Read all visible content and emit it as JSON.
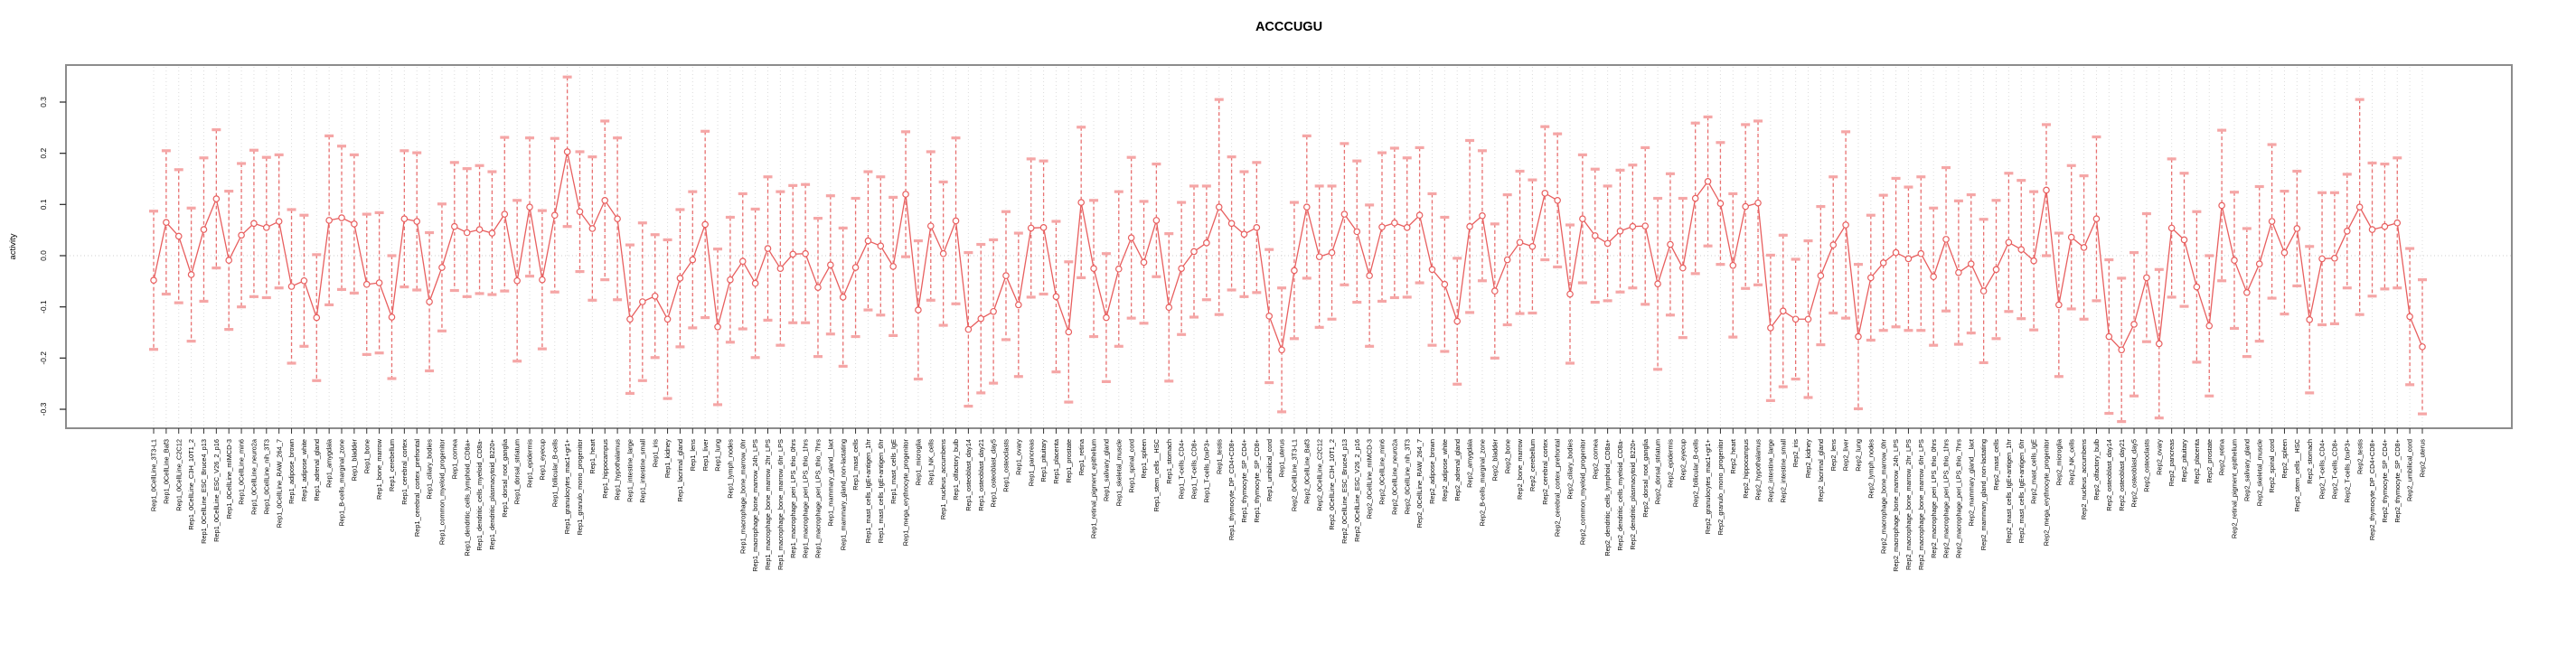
{
  "title": "ACCCUGU",
  "colors": {
    "line": "#e85f5f",
    "marker_fill": "#ffffff",
    "error_stem": "#e87070",
    "error_cap": "#f5a6a6",
    "grid": "#dcdcdc",
    "zero_line": "#cfcfcf",
    "box_border": "#8c8c8c",
    "tick": "#333333"
  },
  "chart_data": {
    "type": "line",
    "title": "ACCCUGU",
    "xlabel": "",
    "ylabel": "activity",
    "ylim": [
      -0.3,
      0.3
    ],
    "yticks": [
      -0.3,
      -0.2,
      -0.1,
      0.0,
      0.1,
      0.2,
      0.3
    ],
    "ytick_labels": [
      "-0.3",
      "-0.2",
      "-0.1",
      "0.0",
      "0.1",
      "0.2",
      "0.3"
    ],
    "grid": "vertical-dotted-per-category, horizontal dotted zero line",
    "legend": "none",
    "marker": "open-circle",
    "error_bars": "symmetric, dashed stems with pink caps",
    "categories": [
      "Rep1_0CellLine_3T3-L1",
      "Rep1_0CellLine_Baf3",
      "Rep1_0CellLine_C2C12",
      "Rep1_0CellLine_C3H_10T1_2",
      "Rep1_0CellLine_ESC_Bruce4_p13",
      "Rep1_0CellLine_ESC_V26_2_p16",
      "Rep1_0CellLine_mIMCD-3",
      "Rep1_0CellLine_min6",
      "Rep1_0CellLine_neuro2a",
      "Rep1_0CellLine_nih_3T3",
      "Rep1_0CellLine_RAW_264_7",
      "Rep1_adipose_brown",
      "Rep1_adipose_white",
      "Rep1_adrenal_gland",
      "Rep1_amygdala",
      "Rep1_B-cells_marginal_zone",
      "Rep1_bladder",
      "Rep1_bone",
      "Rep1_bone_marrow",
      "Rep1_cerebellum",
      "Rep1_cerebral_cortex",
      "Rep1_cerebral_cortex_prefrontal",
      "Rep1_ciliary_bodies",
      "Rep1_common_myeloid_progenitor",
      "Rep1_cornea",
      "Rep1_dendritic_cells_lymphoid_CD8a+",
      "Rep1_dendritic_cells_myeloid_CD8a-",
      "Rep1_dendritic_plasmacytoid_B220+",
      "Rep1_dorsal_root_ganglia",
      "Rep1_dorsal_striatum",
      "Rep1_epidermis",
      "Rep1_eyecup",
      "Rep1_follicular_B-cells",
      "Rep1_granulocytes_mac1+gr1+",
      "Rep1_granulo_mono_progenitor",
      "Rep1_heart",
      "Rep1_hippocampus",
      "Rep1_hypothalamus",
      "Rep1_intestine_large",
      "Rep1_intestine_small",
      "Rep1_iris",
      "Rep1_kidney",
      "Rep1_lacrimal_gland",
      "Rep1_lens",
      "Rep1_liver",
      "Rep1_lung",
      "Rep1_lymph_nodes",
      "Rep1_macrophage_bone_marrow_0hr",
      "Rep1_macrophage_bone_marrow_24h_LPS",
      "Rep1_macrophage_bone_marrow_2hr_LPS",
      "Rep1_macrophage_bone_marrow_6hr_LPS",
      "Rep1_macrophage_peri_LPS_thio_0hrs",
      "Rep1_macrophage_peri_LPS_thio_1hrs",
      "Rep1_macrophage_peri_LPS_thio_7hrs",
      "Rep1_mammary_gland__lact",
      "Rep1_mammary_gland_non-lactating",
      "Rep1_mast_cells",
      "Rep1_mast_cells_IgE+antigen_1hr",
      "Rep1_mast_cells_IgE+antigen_6hr",
      "Rep1_mast_cells_IgE",
      "Rep1_mega_erythrocyte_progenitor",
      "Rep1_microglia",
      "Rep1_NK_cells",
      "Rep1_nucleus_accumbens",
      "Rep1_olfactory_bulb",
      "Rep1_osteoblast_day14",
      "Rep1_osteoblast_day21",
      "Rep1_osteoblast_day5",
      "Rep1_osteoclasts",
      "Rep1_ovary",
      "Rep1_pancreas",
      "Rep1_pituitary",
      "Rep1_placenta",
      "Rep1_prostate",
      "Rep1_retina",
      "Rep1_retinal_pigment_epithelium",
      "Rep1_salivary_gland",
      "Rep1_skeletal_muscle",
      "Rep1_spinal_cord",
      "Rep1_spleen",
      "Rep1_stem_cells__HSC",
      "Rep1_stomach",
      "Rep1_T-cells_CD4+",
      "Rep1_T-cells_CD8+",
      "Rep1_T-cells_foxP3+",
      "Rep1_testis",
      "Rep1_thymocyte_DP_CD4+CD8+",
      "Rep1_thymocyte_SP_CD4+",
      "Rep1_thymocyte_SP_CD8+",
      "Rep1_umbilical_cord",
      "Rep1_uterus",
      "Rep2_0CellLine_3T3-L1",
      "Rep2_0CellLine_Baf3",
      "Rep2_0CellLine_C2C12",
      "Rep2_0CellLine_C3H_10T1_2",
      "Rep2_0CellLine_ESC_Bruce4_p13",
      "Rep2_0CellLine_ESC_V26_2_p16",
      "Rep2_0CellLine_mIMCD-3",
      "Rep2_0CellLine_min6",
      "Rep2_0CellLine_neuro2a",
      "Rep2_0CellLine_nih_3T3",
      "Rep2_0CellLine_RAW_264_7",
      "Rep2_adipose_brown",
      "Rep2_adipose_white",
      "Rep2_adrenal_gland",
      "Rep2_amygdala",
      "Rep2_B-cells_marginal_zone",
      "Rep2_bladder",
      "Rep2_bone",
      "Rep2_bone_marrow",
      "Rep2_cerebellum",
      "Rep2_cerebral_cortex",
      "Rep2_cerebral_cortex_prefrontal",
      "Rep2_ciliary_bodies",
      "Rep2_common_myeloid_progenitor",
      "Rep2_cornea",
      "Rep2_dendritic_cells_lymphoid_CD8a+",
      "Rep2_dendritic_cells_myeloid_CD8a-",
      "Rep2_dendritic_plasmacytoid_B220+",
      "Rep2_dorsal_root_ganglia",
      "Rep2_dorsal_striatum",
      "Rep2_epidermis",
      "Rep2_eyecup",
      "Rep2_follicular_B-cells",
      "Rep2_granulocytes_mac1+gr1+",
      "Rep2_granulo_mono_progenitor",
      "Rep2_heart",
      "Rep2_hippocampus",
      "Rep2_hypothalamus",
      "Rep2_intestine_large",
      "Rep2_intestine_small",
      "Rep2_iris",
      "Rep2_kidney",
      "Rep2_lacrimal_gland",
      "Rep2_lens",
      "Rep2_liver",
      "Rep2_lung",
      "Rep2_lymph_nodes",
      "Rep2_macrophage_bone_marrow_0hr",
      "Rep2_macrophage_bone_marrow_24h_LPS",
      "Rep2_macrophage_bone_marrow_2hr_LPS",
      "Rep2_macrophage_bone_marrow_6hr_LPS",
      "Rep2_macrophage_peri_LPS_thio_0hrs",
      "Rep2_macrophage_peri_LPS_thio_1hrs",
      "Rep2_macrophage_peri_LPS_thio_7hrs",
      "Rep2_mammary_gland__lact",
      "Rep2_mammary_gland_non-lactating",
      "Rep2_mast_cells",
      "Rep2_mast_cells_IgE+antigen_1hr",
      "Rep2_mast_cells_IgE+antigen_6hr",
      "Rep2_mast_cells_IgE",
      "Rep2_mega_erythrocyte_progenitor",
      "Rep2_microglia",
      "Rep2_NK_cells",
      "Rep2_nucleus_accumbens",
      "Rep2_olfactory_bulb",
      "Rep2_osteoblast_day14",
      "Rep2_osteoblast_day21",
      "Rep2_osteoblast_day5",
      "Rep2_osteoclasts",
      "Rep2_ovary",
      "Rep2_pancreas",
      "Rep2_pituitary",
      "Rep2_placenta",
      "Rep2_prostate",
      "Rep2_retina",
      "Rep2_retinal_pigment_epithelium",
      "Rep2_salivary_gland",
      "Rep2_skeletal_muscle",
      "Rep2_spinal_cord",
      "Rep2_spleen",
      "Rep2_stem_cells__HSC",
      "Rep2_stomach",
      "Rep2_T-cells_CD4+",
      "Rep2_T-cells_CD8+",
      "Rep2_T-cells_foxP3+",
      "Rep2_testis",
      "Rep2_thymocyte_DP_CD4+CD8+",
      "Rep2_thymocyte_SP_CD4+",
      "Rep2_thymocyte_SP_CD8+",
      "Rep2_umbilical_cord",
      "Rep2_uterus"
    ],
    "series": [
      {
        "name": "activity",
        "values": [
          -0.048,
          0.065,
          0.038,
          -0.037,
          0.051,
          0.111,
          -0.009,
          0.04,
          0.063,
          0.055,
          0.067,
          -0.06,
          -0.049,
          -0.121,
          0.069,
          0.074,
          0.062,
          -0.056,
          -0.053,
          -0.12,
          0.072,
          0.067,
          -0.09,
          -0.023,
          0.057,
          0.045,
          0.051,
          0.044,
          0.081,
          -0.049,
          0.095,
          -0.047,
          0.079,
          0.203,
          0.086,
          0.053,
          0.108,
          0.072,
          -0.124,
          -0.09,
          -0.079,
          -0.124,
          -0.044,
          -0.008,
          0.061,
          -0.139,
          -0.047,
          -0.011,
          -0.054,
          0.014,
          -0.025,
          0.003,
          0.004,
          -0.062,
          -0.018,
          -0.081,
          -0.023,
          0.029,
          0.019,
          -0.021,
          0.12,
          -0.106,
          0.058,
          0.004,
          0.068,
          -0.144,
          -0.123,
          -0.109,
          -0.039,
          -0.096,
          0.054,
          0.055,
          -0.08,
          -0.149,
          0.104,
          -0.025,
          -0.121,
          -0.026,
          0.035,
          -0.013,
          0.069,
          -0.101,
          -0.025,
          0.008,
          0.025,
          0.095,
          0.063,
          0.042,
          0.055,
          -0.118,
          -0.184,
          -0.029,
          0.095,
          -0.002,
          0.006,
          0.081,
          0.047,
          -0.039,
          0.056,
          0.064,
          0.055,
          0.079,
          -0.027,
          -0.056,
          -0.128,
          0.057,
          0.078,
          -0.069,
          -0.008,
          0.026,
          0.018,
          0.122,
          0.108,
          -0.075,
          0.072,
          0.039,
          0.024,
          0.048,
          0.057,
          0.058,
          -0.055,
          0.022,
          -0.024,
          0.112,
          0.145,
          0.102,
          -0.019,
          0.096,
          0.103,
          -0.141,
          -0.108,
          -0.124,
          -0.124,
          -0.039,
          0.021,
          0.06,
          -0.158,
          -0.043,
          -0.014,
          0.006,
          -0.006,
          0.004,
          -0.041,
          0.032,
          -0.033,
          -0.016,
          -0.069,
          -0.027,
          0.026,
          0.012,
          -0.01,
          0.128,
          -0.096,
          0.036,
          0.016,
          0.072,
          -0.158,
          -0.184,
          -0.134,
          -0.043,
          -0.172,
          0.054,
          0.031,
          -0.061,
          -0.137,
          0.098,
          -0.009,
          -0.072,
          -0.016,
          0.067,
          0.006,
          0.053,
          -0.125,
          -0.006,
          -0.005,
          0.048,
          0.095,
          0.051,
          0.057,
          0.064,
          -0.119,
          -0.178
        ],
        "errors": [
          0.135,
          0.14,
          0.13,
          0.13,
          0.14,
          0.135,
          0.135,
          0.14,
          0.143,
          0.137,
          0.13,
          0.15,
          0.128,
          0.123,
          0.165,
          0.14,
          0.135,
          0.137,
          0.137,
          0.12,
          0.133,
          0.134,
          0.135,
          0.124,
          0.125,
          0.125,
          0.125,
          0.12,
          0.15,
          0.157,
          0.135,
          0.135,
          0.15,
          0.146,
          0.117,
          0.14,
          0.155,
          0.158,
          0.145,
          0.154,
          0.12,
          0.155,
          0.134,
          0.133,
          0.182,
          0.152,
          0.122,
          0.132,
          0.145,
          0.14,
          0.15,
          0.134,
          0.135,
          0.135,
          0.135,
          0.135,
          0.135,
          0.135,
          0.135,
          0.135,
          0.122,
          0.135,
          0.145,
          0.14,
          0.162,
          0.15,
          0.145,
          0.14,
          0.125,
          0.14,
          0.135,
          0.13,
          0.147,
          0.137,
          0.147,
          0.133,
          0.125,
          0.151,
          0.157,
          0.119,
          0.11,
          0.144,
          0.129,
          0.128,
          0.111,
          0.21,
          0.13,
          0.122,
          0.127,
          0.13,
          0.121,
          0.133,
          0.139,
          0.138,
          0.13,
          0.138,
          0.138,
          0.138,
          0.145,
          0.146,
          0.136,
          0.132,
          0.148,
          0.131,
          0.123,
          0.168,
          0.127,
          0.131,
          0.127,
          0.139,
          0.13,
          0.13,
          0.13,
          0.135,
          0.125,
          0.13,
          0.112,
          0.119,
          0.12,
          0.153,
          0.167,
          0.138,
          0.136,
          0.147,
          0.126,
          0.119,
          0.14,
          0.16,
          0.16,
          0.142,
          0.148,
          0.117,
          0.153,
          0.135,
          0.133,
          0.182,
          0.141,
          0.122,
          0.132,
          0.145,
          0.14,
          0.15,
          0.134,
          0.14,
          0.14,
          0.135,
          0.14,
          0.135,
          0.135,
          0.135,
          0.135,
          0.128,
          0.14,
          0.14,
          0.14,
          0.16,
          0.15,
          0.14,
          0.14,
          0.125,
          0.145,
          0.135,
          0.13,
          0.147,
          0.137,
          0.147,
          0.133,
          0.125,
          0.151,
          0.15,
          0.12,
          0.112,
          0.143,
          0.129,
          0.128,
          0.111,
          0.21,
          0.13,
          0.122,
          0.127,
          0.133,
          0.131
        ]
      }
    ]
  }
}
